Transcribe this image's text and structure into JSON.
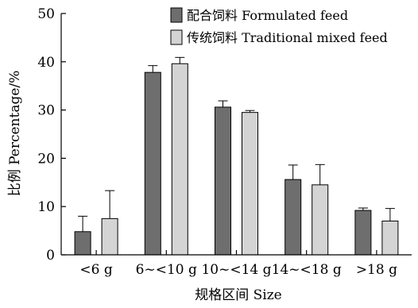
{
  "chart_data": {
    "type": "bar",
    "categories": [
      "<6 g",
      "6~<10 g",
      "10~<14 g",
      "14~<18 g",
      ">18 g"
    ],
    "series": [
      {
        "name": "配合饲料 Formulated feed",
        "color": "#6e6e6e",
        "values": [
          4.8,
          37.8,
          30.6,
          15.6,
          9.2
        ],
        "errors": [
          3.2,
          1.4,
          1.3,
          3.0,
          0.5
        ]
      },
      {
        "name": "传统饲料 Traditional mixed feed",
        "color": "#d4d4d4",
        "values": [
          7.5,
          39.6,
          29.5,
          14.5,
          7.0
        ],
        "errors": [
          5.8,
          1.3,
          0.4,
          4.2,
          2.6
        ]
      }
    ],
    "xlabel": "规格区间 Size",
    "ylabel": "比例 Percentage/%",
    "ylim": [
      0,
      50
    ],
    "yticks": [
      0,
      10,
      20,
      30,
      40,
      50
    ],
    "legend_position": "top-right",
    "grid": false
  }
}
